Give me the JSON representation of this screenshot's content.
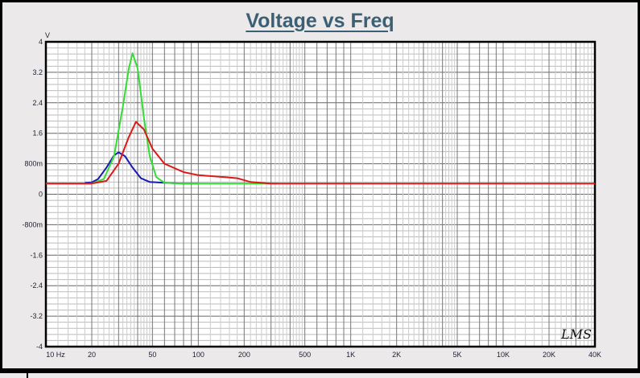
{
  "chart_data": {
    "type": "line",
    "title": "Voltage vs Freq",
    "ylabel": "V",
    "xlabel": "Hz",
    "xscale": "log",
    "xlim": [
      10,
      40000
    ],
    "ylim": [
      -4,
      4
    ],
    "grid": true,
    "ytick_labels": [
      "4",
      "3.2",
      "2.4",
      "1.6",
      "800m",
      "0",
      "-800m",
      "-1.6",
      "-2.4",
      "-3.2",
      "-4"
    ],
    "yticks": [
      4,
      3.2,
      2.4,
      1.6,
      0.8,
      0,
      -0.8,
      -1.6,
      -2.4,
      -3.2,
      -4
    ],
    "xticks": [
      10,
      20,
      50,
      100,
      200,
      500,
      1000,
      2000,
      5000,
      10000,
      20000,
      40000
    ],
    "xtick_labels": [
      "10  Hz",
      "20",
      "50",
      "100",
      "200",
      "500",
      "1K",
      "2K",
      "5K",
      "10K",
      "20K",
      "40K"
    ],
    "series": [
      {
        "name": "blue",
        "color": "#1a1ab0",
        "x": [
          18,
          20,
          22,
          25,
          28,
          30,
          33,
          37,
          42,
          48,
          60,
          80,
          100
        ],
        "y": [
          0.3,
          0.31,
          0.4,
          0.7,
          1.02,
          1.1,
          1.0,
          0.7,
          0.42,
          0.32,
          0.3,
          0.28,
          0.28
        ]
      },
      {
        "name": "green",
        "color": "#33dd33",
        "x": [
          10,
          20,
          24,
          28,
          32,
          35,
          37,
          40,
          44,
          48,
          53,
          60,
          80,
          330
        ],
        "y": [
          0.28,
          0.28,
          0.4,
          1.0,
          2.3,
          3.3,
          3.7,
          3.3,
          2.0,
          1.0,
          0.45,
          0.3,
          0.28,
          0.28
        ]
      },
      {
        "name": "red",
        "color": "#dd1818",
        "x": [
          10,
          20,
          25,
          30,
          35,
          39,
          44,
          50,
          60,
          80,
          100,
          150,
          180,
          220,
          300,
          40000
        ],
        "y": [
          0.28,
          0.28,
          0.35,
          0.8,
          1.5,
          1.9,
          1.7,
          1.2,
          0.8,
          0.58,
          0.5,
          0.45,
          0.42,
          0.32,
          0.28,
          0.28
        ]
      }
    ]
  },
  "logo": "LMS"
}
